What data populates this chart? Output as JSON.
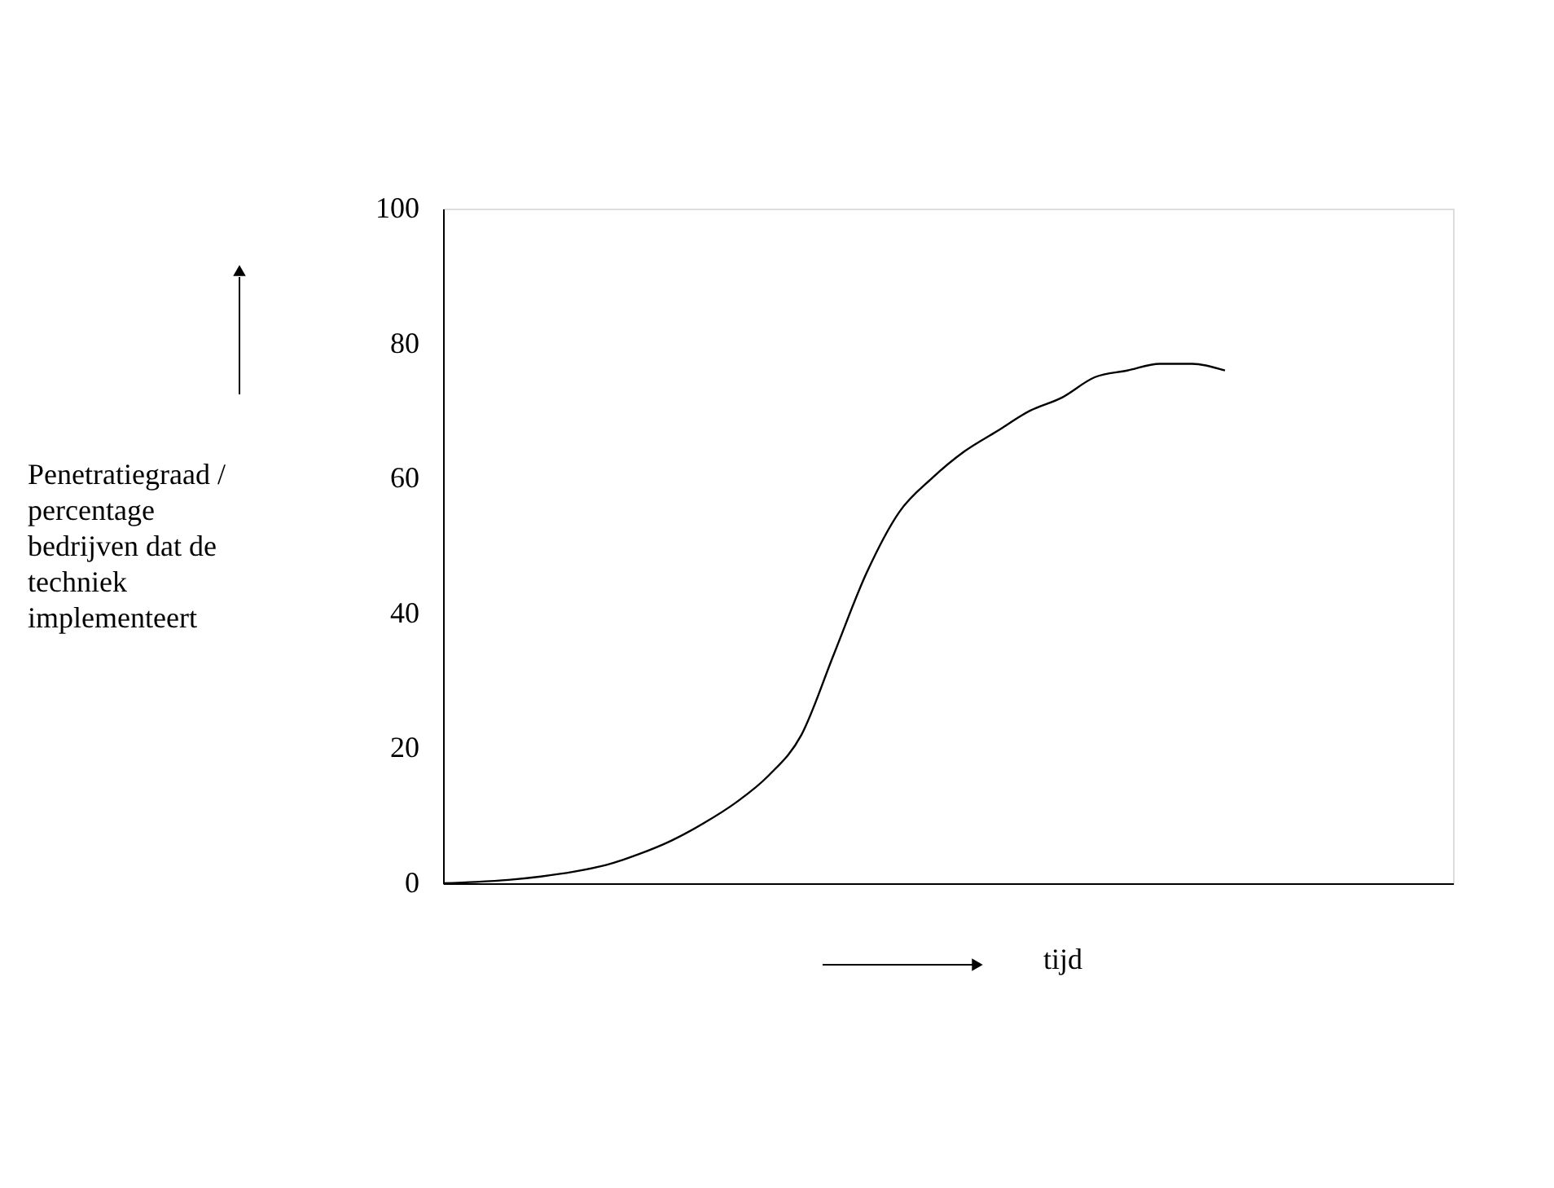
{
  "chart_data": {
    "type": "line",
    "xlabel": "tijd",
    "annotations": [
      "Penetratiegraad / percentage bedrijven dat de techniek implementeert"
    ],
    "categories": [
      null,
      null,
      null,
      null,
      null,
      null,
      null,
      null,
      null,
      null,
      null,
      null,
      null,
      null,
      null,
      null,
      null,
      null,
      null,
      null,
      null,
      null,
      null,
      null,
      null,
      null,
      null,
      null,
      null,
      null,
      null,
      null
    ],
    "values": [
      0,
      0.2,
      0.5,
      1,
      1.7,
      2.7,
      4.3,
      6.3,
      8.9,
      12,
      16,
      22,
      34,
      46,
      55,
      60,
      64,
      67,
      70,
      72,
      75,
      76,
      77,
      77,
      76,
      null,
      null,
      null,
      null,
      null,
      null,
      null
    ],
    "color": "#000000",
    "ylim": [
      0,
      100
    ],
    "yticks": [
      0,
      20,
      40,
      60,
      80,
      100
    ],
    "tick_labels": "y",
    "grid": false,
    "legend": false,
    "marker": "none"
  }
}
